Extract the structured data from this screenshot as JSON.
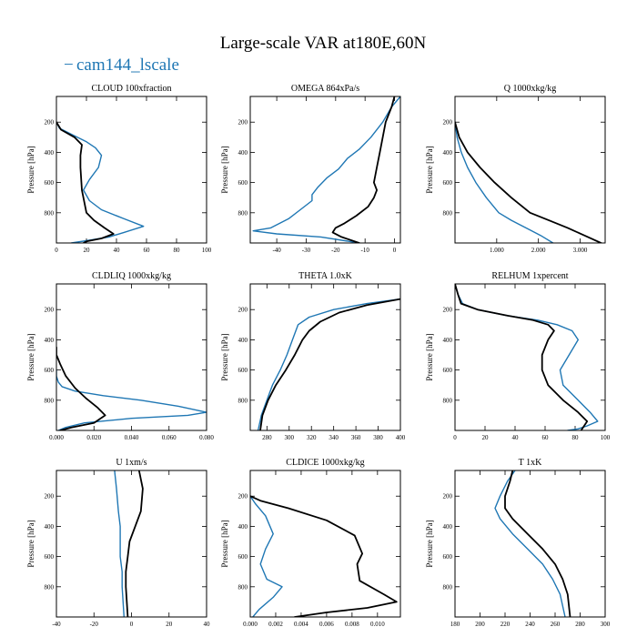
{
  "title": "Large-scale VAR at180E,60N",
  "legend": {
    "label": "cam144_lscale",
    "symbol": "−"
  },
  "colors": {
    "blue": "#1f77b4",
    "black": "#000000"
  },
  "chart_data": [
    {
      "type": "line",
      "title": "CLOUD  100xfraction",
      "ylabel": "Pressure [hPa]",
      "xlim": [
        0,
        100
      ],
      "ylim": [
        1000,
        30
      ],
      "xticks": [
        0,
        20,
        40,
        60,
        80,
        100
      ],
      "xtick_labels": [
        "0",
        "20",
        "40",
        "60",
        "80",
        "100"
      ],
      "yticks": [
        200,
        400,
        600,
        800
      ],
      "ytick_labels": [
        "200",
        "400",
        "600",
        "800"
      ],
      "series": [
        {
          "name": "blue",
          "x": [
            0,
            2,
            12,
            20,
            26,
            30,
            28,
            22,
            18,
            22,
            30,
            45,
            58,
            45,
            35,
            20,
            10
          ],
          "y": [
            200,
            240,
            290,
            330,
            370,
            420,
            500,
            580,
            650,
            720,
            780,
            840,
            890,
            930,
            960,
            985,
            1000
          ]
        },
        {
          "name": "black",
          "x": [
            0,
            3,
            12,
            17,
            16,
            16,
            17,
            20,
            25,
            32,
            38,
            30,
            20,
            18
          ],
          "y": [
            200,
            250,
            300,
            350,
            420,
            500,
            650,
            800,
            850,
            900,
            940,
            970,
            990,
            1000
          ]
        }
      ]
    },
    {
      "type": "line",
      "title": "OMEGA  864xPa/s",
      "ylabel": "Pressure [hPa]",
      "xlim": [
        -49,
        2
      ],
      "ylim": [
        1000,
        30
      ],
      "xticks": [
        -40,
        -30,
        -20,
        -10,
        0
      ],
      "xtick_labels": [
        "-40",
        "-30",
        "-20",
        "-10",
        "0"
      ],
      "yticks": [
        200,
        400,
        600,
        800
      ],
      "ytick_labels": [
        "200",
        "400",
        "600",
        "800"
      ],
      "series": [
        {
          "name": "blue",
          "x": [
            2,
            -1,
            -4,
            -8,
            -12,
            -16,
            -19,
            -23,
            -26,
            -28,
            -28,
            -32,
            -36,
            -42,
            -48,
            -40,
            -25,
            -12
          ],
          "y": [
            30,
            100,
            200,
            300,
            380,
            440,
            510,
            570,
            630,
            680,
            720,
            780,
            840,
            900,
            920,
            940,
            960,
            1000
          ]
        },
        {
          "name": "black",
          "x": [
            0,
            -1,
            -3,
            -4,
            -5,
            -6,
            -7,
            -6,
            -7,
            -9,
            -13,
            -17,
            -20,
            -21,
            -18,
            -12
          ],
          "y": [
            30,
            100,
            200,
            300,
            400,
            500,
            600,
            650,
            700,
            760,
            820,
            870,
            900,
            930,
            960,
            1000
          ]
        }
      ]
    },
    {
      "type": "line",
      "title": "Q  1000xkg/kg",
      "ylabel": "Pressure [hPa]",
      "xlim": [
        0,
        3.6
      ],
      "ylim": [
        1000,
        30
      ],
      "xticks": [
        1,
        2,
        3
      ],
      "xtick_labels": [
        "1.000",
        "2.000",
        "3.000"
      ],
      "yticks": [
        200,
        400,
        600,
        800
      ],
      "ytick_labels": [
        "200",
        "400",
        "600",
        "800"
      ],
      "series": [
        {
          "name": "blue",
          "x": [
            0,
            0.05,
            0.15,
            0.3,
            0.5,
            0.75,
            1.05,
            1.35,
            1.7,
            2.05,
            2.35
          ],
          "y": [
            200,
            300,
            400,
            500,
            600,
            700,
            800,
            850,
            900,
            950,
            1000
          ]
        },
        {
          "name": "black",
          "x": [
            0,
            0.1,
            0.3,
            0.6,
            0.95,
            1.35,
            1.8,
            2.25,
            2.7,
            3.1,
            3.5
          ],
          "y": [
            200,
            300,
            400,
            500,
            600,
            700,
            800,
            850,
            900,
            950,
            1000
          ]
        }
      ]
    },
    {
      "type": "line",
      "title": "CLDLIQ  1000xkg/kg",
      "ylabel": "Pressure [hPa]",
      "xlim": [
        0,
        0.08
      ],
      "ylim": [
        1000,
        30
      ],
      "xticks": [
        0,
        0.02,
        0.04,
        0.06,
        0.08
      ],
      "xtick_labels": [
        "0.000",
        "0.020",
        "0.040",
        "0.060",
        "0.080"
      ],
      "yticks": [
        200,
        400,
        600,
        800
      ],
      "ytick_labels": [
        "200",
        "400",
        "600",
        "800"
      ],
      "series": [
        {
          "name": "blue",
          "x": [
            0,
            0,
            0.001,
            0.003,
            0.01,
            0.025,
            0.045,
            0.065,
            0.08,
            0.07,
            0.04,
            0.015,
            0.005,
            0.001
          ],
          "y": [
            600,
            640,
            680,
            710,
            740,
            770,
            800,
            840,
            880,
            900,
            920,
            950,
            980,
            1000
          ]
        },
        {
          "name": "black",
          "x": [
            0,
            0,
            0.002,
            0.005,
            0.01,
            0.016,
            0.022,
            0.026,
            0.02,
            0.008,
            0.002
          ],
          "y": [
            450,
            500,
            560,
            640,
            720,
            790,
            850,
            900,
            950,
            980,
            1000
          ]
        }
      ]
    },
    {
      "type": "line",
      "title": "THETA  1.0xK",
      "ylabel": "Pressure [hPa]",
      "xlim": [
        265,
        400
      ],
      "ylim": [
        1000,
        30
      ],
      "xticks": [
        280,
        300,
        320,
        340,
        360,
        380,
        400
      ],
      "xtick_labels": [
        "280",
        "300",
        "320",
        "340",
        "360",
        "380",
        "400"
      ],
      "yticks": [
        200,
        400,
        600,
        800
      ],
      "ytick_labels": [
        "200",
        "400",
        "600",
        "800"
      ],
      "series": [
        {
          "name": "blue",
          "x": [
            400,
            370,
            340,
            318,
            308,
            303,
            298,
            292,
            285,
            280,
            275,
            272
          ],
          "y": [
            130,
            160,
            200,
            250,
            300,
            400,
            500,
            600,
            700,
            800,
            900,
            1000
          ]
        },
        {
          "name": "black",
          "x": [
            400,
            370,
            345,
            328,
            318,
            312,
            305,
            297,
            288,
            281,
            276,
            274
          ],
          "y": [
            130,
            170,
            220,
            280,
            340,
            400,
            500,
            600,
            700,
            800,
            900,
            1000
          ]
        }
      ]
    },
    {
      "type": "line",
      "title": "RELHUM  1xpercent",
      "ylabel": "Pressure [hPa]",
      "xlim": [
        0,
        100
      ],
      "ylim": [
        1000,
        30
      ],
      "xticks": [
        0,
        20,
        40,
        60,
        80,
        100
      ],
      "xtick_labels": [
        "0",
        "20",
        "40",
        "60",
        "80",
        "100"
      ],
      "yticks": [
        200,
        400,
        600,
        800
      ],
      "ytick_labels": [
        "200",
        "400",
        "600",
        "800"
      ],
      "series": [
        {
          "name": "blue",
          "x": [
            0,
            2,
            5,
            15,
            35,
            55,
            68,
            78,
            82,
            76,
            70,
            72,
            82,
            90,
            95,
            88,
            82,
            75
          ],
          "y": [
            30,
            100,
            160,
            200,
            240,
            270,
            300,
            340,
            400,
            500,
            600,
            700,
            800,
            880,
            940,
            970,
            990,
            1000
          ]
        },
        {
          "name": "black",
          "x": [
            0,
            2,
            4,
            15,
            35,
            52,
            62,
            66,
            62,
            58,
            58,
            62,
            72,
            82,
            88,
            86,
            84
          ],
          "y": [
            30,
            100,
            160,
            200,
            240,
            270,
            300,
            340,
            400,
            500,
            600,
            700,
            800,
            880,
            940,
            970,
            1000
          ]
        }
      ]
    },
    {
      "type": "line",
      "title": "U  1xm/s",
      "ylabel": "Pressure [hPa]",
      "xlim": [
        -40,
        40
      ],
      "ylim": [
        1000,
        30
      ],
      "xticks": [
        -40,
        -20,
        0,
        20,
        40
      ],
      "xtick_labels": [
        "-40",
        "-20",
        "0",
        "20",
        "40"
      ],
      "yticks": [
        200,
        400,
        600,
        800
      ],
      "ytick_labels": [
        "200",
        "400",
        "600",
        "800"
      ],
      "series": [
        {
          "name": "blue",
          "x": [
            -9,
            -8,
            -7,
            -6,
            -6,
            -6,
            -5,
            -5,
            -4
          ],
          "y": [
            30,
            150,
            300,
            400,
            500,
            600,
            700,
            800,
            1000
          ]
        },
        {
          "name": "black",
          "x": [
            4,
            6,
            5,
            2,
            -1,
            -2,
            -3,
            -3,
            -2
          ],
          "y": [
            30,
            150,
            300,
            400,
            500,
            600,
            700,
            800,
            1000
          ]
        }
      ]
    },
    {
      "type": "line",
      "title": "CLDICE  1000xkg/kg",
      "ylabel": "Pressure [hPa]",
      "xlim": [
        0,
        0.0118
      ],
      "ylim": [
        1000,
        30
      ],
      "xticks": [
        0,
        0.002,
        0.004,
        0.006,
        0.008,
        0.01
      ],
      "xtick_labels": [
        "0.000",
        "0.002",
        "0.004",
        "0.006",
        "0.008",
        "0.010"
      ],
      "yticks": [
        200,
        400,
        600,
        800
      ],
      "ytick_labels": [
        "200",
        "400",
        "600",
        "800"
      ],
      "series": [
        {
          "name": "blue",
          "x": [
            0,
            0.0004,
            0.0012,
            0.0018,
            0.0012,
            0.0008,
            0.0013,
            0.0025,
            0.0018,
            0.0007,
            0.0002
          ],
          "y": [
            200,
            250,
            330,
            450,
            550,
            650,
            750,
            800,
            870,
            950,
            1000
          ]
        },
        {
          "name": "black",
          "x": [
            0,
            0.0008,
            0.003,
            0.006,
            0.0082,
            0.0088,
            0.0084,
            0.0086,
            0.0105,
            0.0115,
            0.0092,
            0.006,
            0.0035
          ],
          "y": [
            200,
            230,
            280,
            360,
            460,
            580,
            650,
            760,
            850,
            900,
            940,
            970,
            1000
          ]
        }
      ]
    },
    {
      "type": "line",
      "title": "T  1xK",
      "ylabel": "Pressure [hPa]",
      "xlim": [
        180,
        300
      ],
      "ylim": [
        1000,
        30
      ],
      "xticks": [
        180,
        200,
        220,
        240,
        260,
        280,
        300
      ],
      "xtick_labels": [
        "180",
        "200",
        "220",
        "240",
        "260",
        "280",
        "300"
      ],
      "yticks": [
        200,
        400,
        600,
        800
      ],
      "ytick_labels": [
        "200",
        "400",
        "600",
        "800"
      ],
      "series": [
        {
          "name": "blue",
          "x": [
            228,
            222,
            216,
            212,
            216,
            226,
            238,
            250,
            258,
            264,
            268
          ],
          "y": [
            30,
            100,
            200,
            280,
            350,
            450,
            550,
            650,
            750,
            850,
            1000
          ]
        },
        {
          "name": "black",
          "x": [
            226,
            224,
            220,
            220,
            226,
            238,
            250,
            260,
            266,
            270,
            272
          ],
          "y": [
            30,
            100,
            200,
            280,
            350,
            450,
            550,
            650,
            750,
            850,
            1000
          ]
        }
      ]
    }
  ]
}
